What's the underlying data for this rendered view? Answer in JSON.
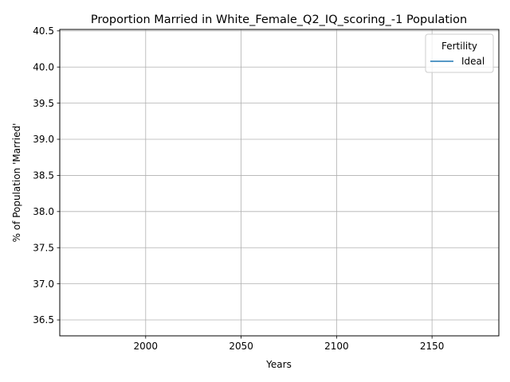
{
  "chart_data": {
    "type": "line",
    "title": "Proportion Married in White_Female_Q2_IQ_scoring_-1 Population",
    "xlabel": "Years",
    "ylabel": "% of Population 'Married'",
    "xlim": [
      1955,
      2185
    ],
    "ylim": [
      36.28,
      40.52
    ],
    "x_ticks": [
      2000,
      2050,
      2100,
      2150
    ],
    "x_tick_labels": [
      "2000",
      "2050",
      "2100",
      "2150"
    ],
    "y_ticks": [
      36.5,
      37.0,
      37.5,
      38.0,
      38.5,
      39.0,
      39.5,
      40.0,
      40.5
    ],
    "y_tick_labels": [
      "36.5",
      "37.0",
      "37.5",
      "38.0",
      "38.5",
      "39.0",
      "39.5",
      "40.0",
      "40.5"
    ],
    "grid": true,
    "legend": {
      "title": "Fertility",
      "position": "top-right",
      "entries": [
        {
          "name": "Ideal",
          "color": "#1f77b4"
        }
      ]
    },
    "series": [
      {
        "name": "Ideal",
        "color": "#1f77b4",
        "x": [],
        "y": []
      }
    ]
  }
}
